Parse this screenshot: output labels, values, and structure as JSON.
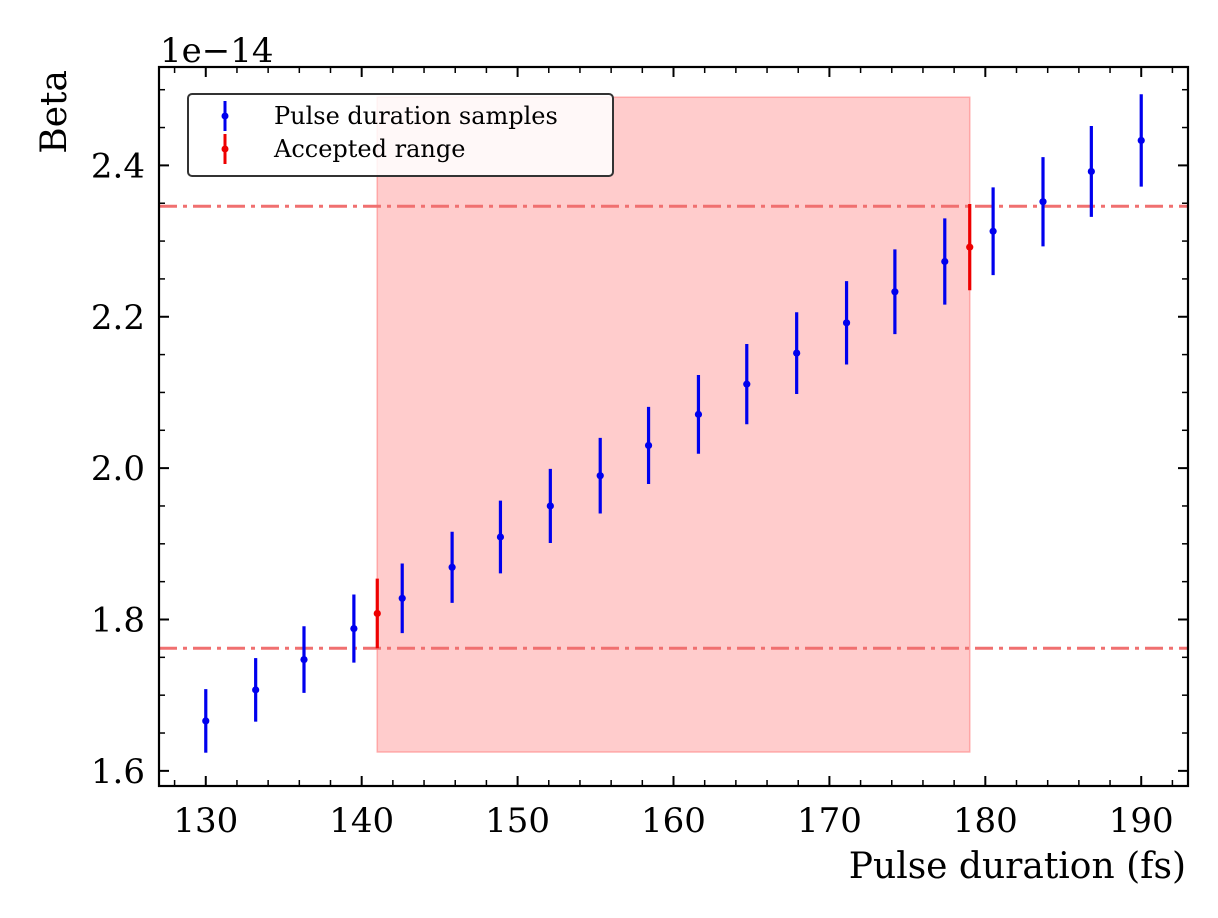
{
  "chart_data": {
    "type": "scatter",
    "xlabel": "Pulse duration (fs)",
    "ylabel": "Beta",
    "y_offset_text": "1e−14",
    "xlim": [
      127,
      193
    ],
    "ylim": [
      1.58,
      2.53
    ],
    "xticks": [
      130,
      140,
      150,
      160,
      170,
      180,
      190
    ],
    "yticks": [
      1.6,
      1.8,
      2.0,
      2.2,
      2.4
    ],
    "ytick_labels": [
      "1.6",
      "1.8",
      "2.0",
      "2.2",
      "2.4"
    ],
    "grid": false,
    "legend": {
      "placement": "top-left",
      "entries": [
        "Pulse duration samples",
        "Accepted range"
      ]
    },
    "series": [
      {
        "name": "Pulse duration samples",
        "color": "#0000ee",
        "x": [
          130.0,
          133.2,
          136.3,
          139.5,
          142.6,
          145.8,
          148.9,
          152.1,
          155.3,
          158.4,
          161.6,
          164.7,
          167.9,
          171.1,
          174.2,
          177.4,
          180.5,
          183.7,
          186.8,
          190.0
        ],
        "y": [
          1.666,
          1.707,
          1.747,
          1.788,
          1.828,
          1.869,
          1.909,
          1.95,
          1.99,
          2.03,
          2.071,
          2.111,
          2.152,
          2.192,
          2.233,
          2.273,
          2.313,
          2.352,
          2.392,
          2.433
        ],
        "yerr": [
          0.042,
          0.042,
          0.044,
          0.045,
          0.046,
          0.047,
          0.048,
          0.049,
          0.05,
          0.051,
          0.052,
          0.053,
          0.054,
          0.055,
          0.056,
          0.057,
          0.058,
          0.059,
          0.06,
          0.061
        ]
      },
      {
        "name": "Accepted range",
        "color": "#ee0000",
        "x": [
          141.0,
          179.0
        ],
        "y": [
          1.808,
          2.292
        ],
        "yerr": [
          0.046,
          0.057
        ]
      }
    ],
    "hlines": [
      {
        "y": 1.762,
        "style": "dashdot",
        "color": "#f07070"
      },
      {
        "y": 2.346,
        "style": "dashdot",
        "color": "#f07070"
      }
    ],
    "shaded_region": {
      "x": [
        141.0,
        179.0
      ],
      "y": [
        1.625,
        2.49
      ],
      "color": "#ff9999"
    }
  }
}
